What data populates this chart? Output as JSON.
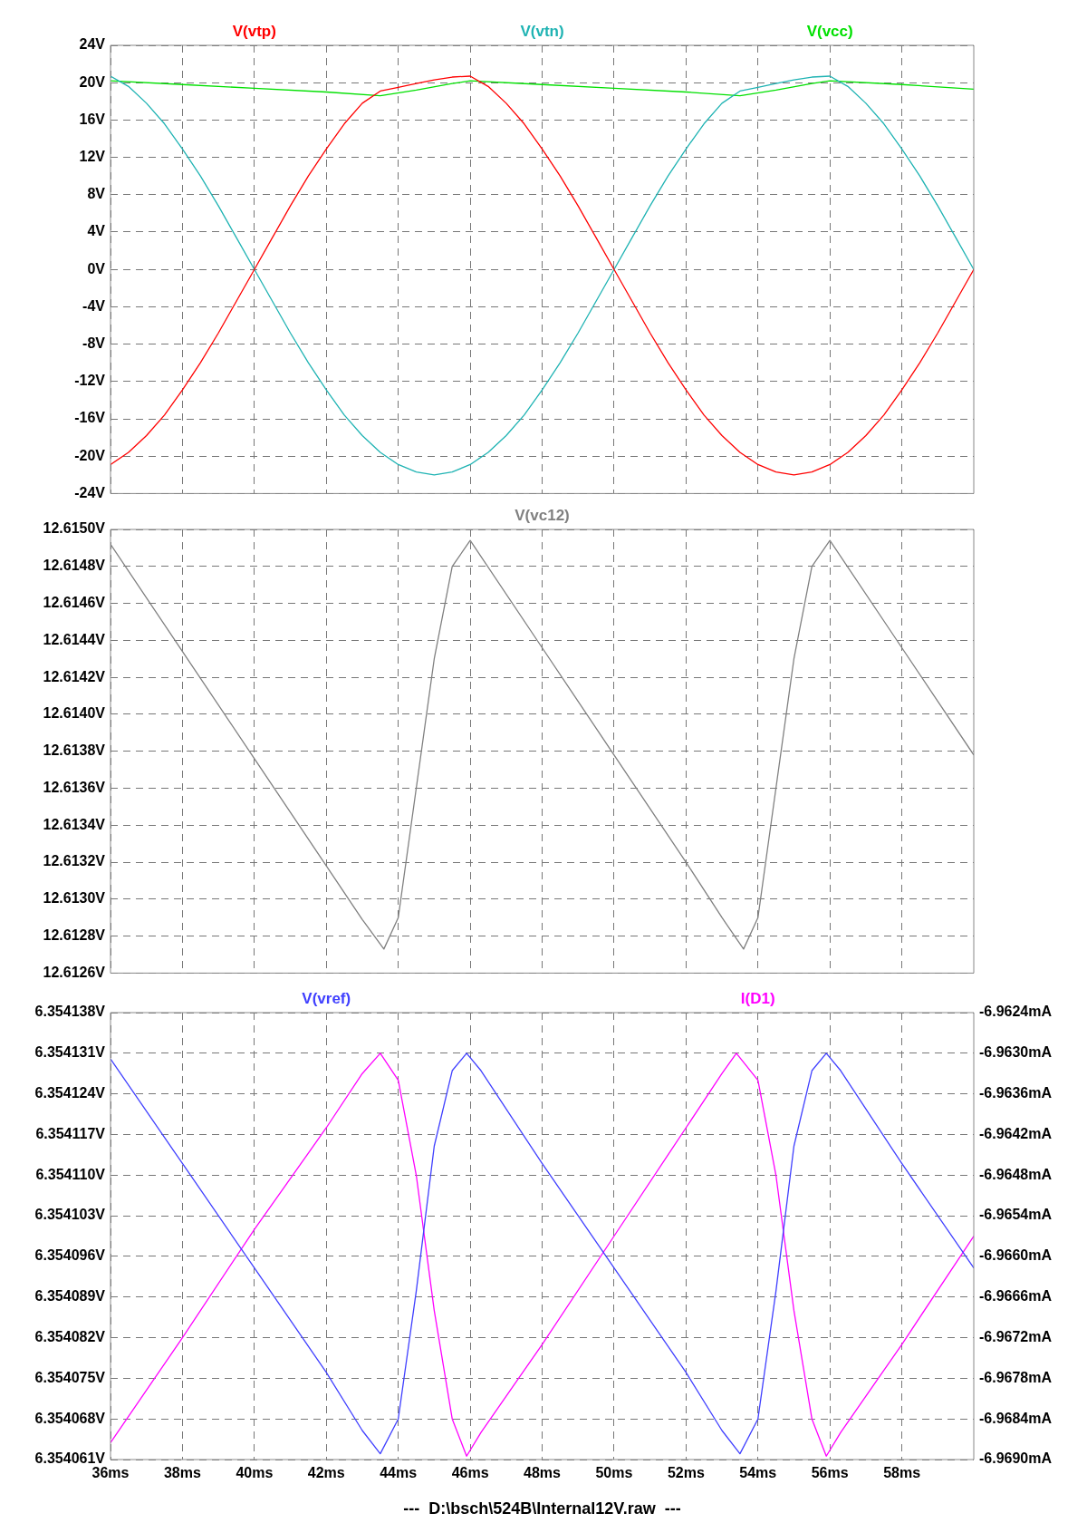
{
  "chart_data": [
    {
      "type": "line",
      "legend": "top",
      "grid": true,
      "tick_labels": "y",
      "xlim": [
        36,
        60
      ],
      "xticks": [
        {
          "value": 36,
          "label": null
        },
        {
          "value": 38,
          "label": null
        },
        {
          "value": 40,
          "label": null
        },
        {
          "value": 42,
          "label": null
        },
        {
          "value": 44,
          "label": null
        },
        {
          "value": 46,
          "label": null
        },
        {
          "value": 48,
          "label": null
        },
        {
          "value": 50,
          "label": null
        },
        {
          "value": 52,
          "label": null
        },
        {
          "value": 54,
          "label": null
        },
        {
          "value": 56,
          "label": null
        },
        {
          "value": 58,
          "label": null
        }
      ],
      "ylim": [
        -24,
        24
      ],
      "yticks": [
        {
          "value": -24,
          "label": "-24V"
        },
        {
          "value": -20,
          "label": "-20V"
        },
        {
          "value": -16,
          "label": "-16V"
        },
        {
          "value": -12,
          "label": "-12V"
        },
        {
          "value": -8,
          "label": "-8V"
        },
        {
          "value": -4,
          "label": "-4V"
        },
        {
          "value": 0,
          "label": "0V"
        },
        {
          "value": 4,
          "label": "4V"
        },
        {
          "value": 8,
          "label": "8V"
        },
        {
          "value": 12,
          "label": "12V"
        },
        {
          "value": 16,
          "label": "16V"
        },
        {
          "value": 20,
          "label": "20V"
        },
        {
          "value": 24,
          "label": "24V"
        }
      ],
      "x": [
        36,
        36.5,
        37,
        37.5,
        38,
        38.5,
        39,
        39.5,
        40,
        40.5,
        41,
        41.5,
        42,
        42.5,
        43,
        43.5,
        44,
        44.5,
        45,
        45.5,
        46,
        46.5,
        47,
        47.5,
        48,
        48.5,
        49,
        49.5,
        50,
        50.5,
        51,
        51.5,
        52,
        52.5,
        53,
        53.5,
        54,
        54.5,
        55,
        55.5,
        56,
        56.5,
        57,
        57.5,
        58,
        58.5,
        59,
        59.5,
        60
      ],
      "series": [
        {
          "name": "V(vtp)",
          "color": "#ff0000",
          "values": [
            -20.9,
            -19.6,
            -17.8,
            -15.6,
            -12.9,
            -10.0,
            -6.8,
            -3.4,
            0,
            3.4,
            6.8,
            10.0,
            12.9,
            15.6,
            17.8,
            19.1,
            19.5,
            19.9,
            20.3,
            20.6,
            20.7,
            19.6,
            17.8,
            15.6,
            12.9,
            10.0,
            6.8,
            3.4,
            0,
            -3.4,
            -6.8,
            -10.0,
            -12.9,
            -15.6,
            -17.8,
            -19.6,
            -20.9,
            -21.7,
            -22.0,
            -21.7,
            -20.9,
            -19.6,
            -17.8,
            -15.6,
            -12.9,
            -10.0,
            -6.8,
            -3.4,
            0
          ]
        },
        {
          "name": "V(vtn)",
          "color": "#1fb3b3",
          "values": [
            20.7,
            19.6,
            17.8,
            15.6,
            12.9,
            10.0,
            6.8,
            3.4,
            0,
            -3.4,
            -6.8,
            -10.0,
            -12.9,
            -15.6,
            -17.8,
            -19.6,
            -20.9,
            -21.7,
            -22.0,
            -21.7,
            -20.9,
            -19.6,
            -17.8,
            -15.6,
            -12.9,
            -10.0,
            -6.8,
            -3.4,
            0,
            3.4,
            6.8,
            10.0,
            12.9,
            15.6,
            17.8,
            19.1,
            19.5,
            19.9,
            20.3,
            20.6,
            20.7,
            19.6,
            17.8,
            15.6,
            12.9,
            10.0,
            6.8,
            3.4,
            0
          ]
        },
        {
          "name": "V(vcc)",
          "color": "#00e000",
          "x": [
            36,
            38,
            40,
            42,
            43.5,
            44.5,
            45.5,
            46,
            48,
            50,
            52,
            53.5,
            54.5,
            55.5,
            56,
            58,
            60
          ],
          "values": [
            20.2,
            19.8,
            19.4,
            19.0,
            18.6,
            19.2,
            19.9,
            20.2,
            19.8,
            19.4,
            19.0,
            18.6,
            19.2,
            19.9,
            20.2,
            19.8,
            19.3
          ]
        }
      ]
    },
    {
      "type": "line",
      "legend": "top",
      "grid": true,
      "tick_labels": "y",
      "xlim": [
        36,
        60
      ],
      "xticks": [
        {
          "value": 36,
          "label": null
        },
        {
          "value": 38,
          "label": null
        },
        {
          "value": 40,
          "label": null
        },
        {
          "value": 42,
          "label": null
        },
        {
          "value": 44,
          "label": null
        },
        {
          "value": 46,
          "label": null
        },
        {
          "value": 48,
          "label": null
        },
        {
          "value": 50,
          "label": null
        },
        {
          "value": 52,
          "label": null
        },
        {
          "value": 54,
          "label": null
        },
        {
          "value": 56,
          "label": null
        },
        {
          "value": 58,
          "label": null
        }
      ],
      "ylim": [
        12.6126,
        12.615
      ],
      "yticks": [
        {
          "value": 12.6126,
          "label": "12.6126V"
        },
        {
          "value": 12.6128,
          "label": "12.6128V"
        },
        {
          "value": 12.613,
          "label": "12.6130V"
        },
        {
          "value": 12.6132,
          "label": "12.6132V"
        },
        {
          "value": 12.6134,
          "label": "12.6134V"
        },
        {
          "value": 12.6136,
          "label": "12.6136V"
        },
        {
          "value": 12.6138,
          "label": "12.6138V"
        },
        {
          "value": 12.614,
          "label": "12.6140V"
        },
        {
          "value": 12.6142,
          "label": "12.6142V"
        },
        {
          "value": 12.6144,
          "label": "12.6144V"
        },
        {
          "value": 12.6146,
          "label": "12.6146V"
        },
        {
          "value": 12.6148,
          "label": "12.6148V"
        },
        {
          "value": 12.615,
          "label": "12.6150V"
        }
      ],
      "series": [
        {
          "name": "V(vc12)",
          "color": "#808080",
          "x": [
            36,
            38,
            40,
            42,
            43,
            43.6,
            44,
            44.5,
            45,
            45.5,
            46,
            48,
            50,
            52,
            53,
            53.6,
            54,
            54.5,
            55,
            55.5,
            56,
            58,
            60
          ],
          "values": [
            12.61492,
            12.61434,
            12.61376,
            12.61318,
            12.61289,
            12.61273,
            12.6129,
            12.6136,
            12.6143,
            12.6148,
            12.61494,
            12.61436,
            12.61378,
            12.6132,
            12.6129,
            12.61273,
            12.6129,
            12.6136,
            12.6143,
            12.6148,
            12.61494,
            12.61436,
            12.61378
          ]
        }
      ]
    },
    {
      "type": "line",
      "legend": "top",
      "grid": true,
      "xlim": [
        36,
        60
      ],
      "xticks": [
        {
          "value": 36,
          "label": "36ms"
        },
        {
          "value": 38,
          "label": "38ms"
        },
        {
          "value": 40,
          "label": "40ms"
        },
        {
          "value": 42,
          "label": "42ms"
        },
        {
          "value": 44,
          "label": "44ms"
        },
        {
          "value": 46,
          "label": "46ms"
        },
        {
          "value": 48,
          "label": "48ms"
        },
        {
          "value": 50,
          "label": "50ms"
        },
        {
          "value": 52,
          "label": "52ms"
        },
        {
          "value": 54,
          "label": "54ms"
        },
        {
          "value": 56,
          "label": "56ms"
        },
        {
          "value": 58,
          "label": "58ms"
        }
      ],
      "ylim": [
        6.354061,
        6.354138
      ],
      "yticks": [
        {
          "value": 6.354061,
          "label": "6.354061V"
        },
        {
          "value": 6.354068,
          "label": "6.354068V"
        },
        {
          "value": 6.354075,
          "label": "6.354075V"
        },
        {
          "value": 6.354082,
          "label": "6.354082V"
        },
        {
          "value": 6.354089,
          "label": "6.354089V"
        },
        {
          "value": 6.354096,
          "label": "6.354096V"
        },
        {
          "value": 6.354103,
          "label": "6.354103V"
        },
        {
          "value": 6.35411,
          "label": "6.354110V"
        },
        {
          "value": 6.354117,
          "label": "6.354117V"
        },
        {
          "value": 6.354124,
          "label": "6.354124V"
        },
        {
          "value": 6.354131,
          "label": "6.354131V"
        },
        {
          "value": 6.354138,
          "label": "6.354138V"
        }
      ],
      "y2lim": [
        -6.969,
        -6.9624
      ],
      "y2ticks": [
        {
          "value": -6.969,
          "label": "-6.9690mA"
        },
        {
          "value": -6.9684,
          "label": "-6.9684mA"
        },
        {
          "value": -6.9678,
          "label": "-6.9678mA"
        },
        {
          "value": -6.9672,
          "label": "-6.9672mA"
        },
        {
          "value": -6.9666,
          "label": "-6.9666mA"
        },
        {
          "value": -6.966,
          "label": "-6.9660mA"
        },
        {
          "value": -6.9654,
          "label": "-6.9654mA"
        },
        {
          "value": -6.9648,
          "label": "-6.9648mA"
        },
        {
          "value": -6.9642,
          "label": "-6.9642mA"
        },
        {
          "value": -6.9636,
          "label": "-6.9636mA"
        },
        {
          "value": -6.963,
          "label": "-6.9630mA"
        },
        {
          "value": -6.9624,
          "label": "-6.9624mA"
        }
      ],
      "annotations": [
        "---  D:\\bsch\\524B\\Internal12V.raw  ---"
      ],
      "series": [
        {
          "name": "V(vref)",
          "color": "#4040ff",
          "x": [
            36,
            38,
            40,
            42,
            43,
            43.5,
            44,
            44.5,
            45,
            45.5,
            45.9,
            46.3,
            48,
            50,
            52,
            53,
            53.5,
            54,
            54.5,
            55,
            55.5,
            55.9,
            56.3,
            58,
            60
          ],
          "values": [
            6.35413,
            6.354112,
            6.354094,
            6.354076,
            6.354066,
            6.354062,
            6.354068,
            6.35409,
            6.354115,
            6.354128,
            6.354131,
            6.354128,
            6.354112,
            6.354094,
            6.354076,
            6.354066,
            6.354062,
            6.354068,
            6.35409,
            6.354115,
            6.354128,
            6.354131,
            6.354128,
            6.354112,
            6.354094
          ]
        },
        {
          "name": "I(D1)",
          "color": "#ff00ff",
          "axis": "y2",
          "x": [
            36,
            38,
            40,
            42,
            43,
            43.5,
            44,
            44.5,
            45,
            45.5,
            45.9,
            46.3,
            48,
            50,
            52,
            53,
            53.4,
            54,
            54.5,
            55,
            55.5,
            55.9,
            56.3,
            58,
            60
          ],
          "values": [
            -6.96875,
            -6.9672,
            -6.9656,
            -6.9641,
            -6.9633,
            -6.963,
            -6.9634,
            -6.9648,
            -6.9668,
            -6.9684,
            -6.96895,
            -6.9686,
            -6.9673,
            -6.9657,
            -6.9641,
            -6.9633,
            -6.963,
            -6.9634,
            -6.9648,
            -6.9668,
            -6.9684,
            -6.96895,
            -6.9686,
            -6.9673,
            -6.9657
          ]
        }
      ]
    }
  ]
}
